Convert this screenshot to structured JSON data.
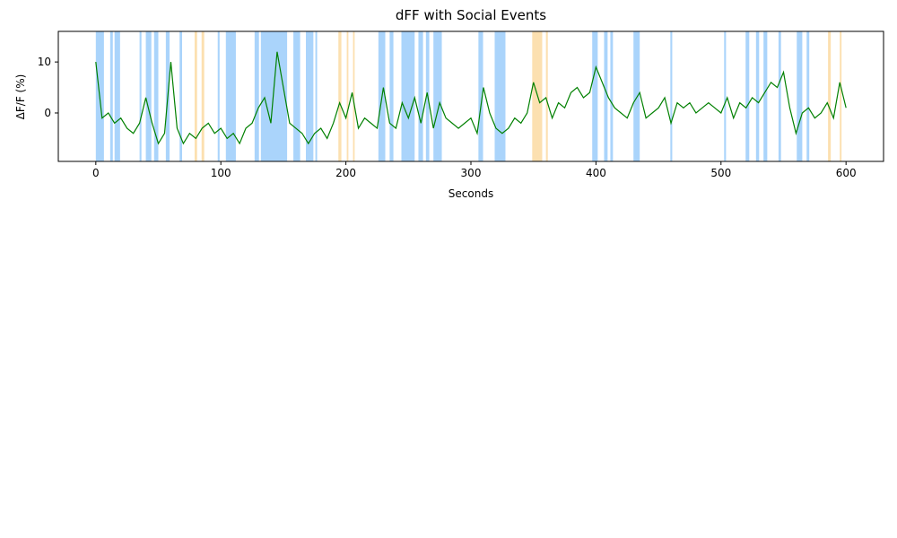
{
  "chart_data": {
    "type": "line",
    "title": "dFF with Social Events",
    "x_label": "Seconds",
    "y_label": "ΔF/F (%)",
    "x": [
      0,
      5,
      10,
      15,
      20,
      25,
      30,
      35,
      40,
      45,
      50,
      55,
      60,
      65,
      70,
      75,
      80,
      85,
      90,
      95,
      100,
      105,
      110,
      115,
      120,
      125,
      130,
      135,
      140,
      145,
      150,
      155,
      160,
      165,
      170,
      175,
      180,
      185,
      190,
      195,
      200,
      205,
      210,
      215,
      220,
      225,
      230,
      235,
      240,
      245,
      250,
      255,
      260,
      265,
      270,
      275,
      280,
      285,
      290,
      295,
      300,
      305,
      310,
      315,
      320,
      325,
      330,
      335,
      340,
      345,
      350,
      355,
      360,
      365,
      370,
      375,
      380,
      385,
      390,
      395,
      400,
      405,
      410,
      415,
      420,
      425,
      430,
      435,
      440,
      445,
      450,
      455,
      460,
      465,
      470,
      475,
      480,
      485,
      490,
      495,
      500,
      505,
      510,
      515,
      520,
      525,
      530,
      535,
      540,
      545,
      550,
      555,
      560,
      565,
      570,
      575,
      580,
      585,
      590,
      595,
      600
    ],
    "series": [
      {
        "color": "#008000",
        "values": [
          10,
          -1,
          0,
          -2,
          -1,
          -3,
          -4,
          -2,
          3,
          -2,
          -6,
          -4,
          10,
          -3,
          -6,
          -4,
          -5,
          -3,
          -2,
          -4,
          -3,
          -5,
          -4,
          -6,
          -3,
          -2,
          1,
          3,
          -2,
          12,
          5,
          -2,
          -3,
          -4,
          -6,
          -4,
          -3,
          -5,
          -2,
          2,
          -1,
          4,
          -3,
          -1,
          -2,
          -3,
          5,
          -2,
          -3,
          2,
          -1,
          3,
          -2,
          4,
          -3,
          2,
          -1,
          -2,
          -3,
          -2,
          -1,
          -4,
          5,
          0,
          -3,
          -4,
          -3,
          -1,
          -2,
          0,
          6,
          2,
          3,
          -1,
          2,
          1,
          4,
          5,
          3,
          4,
          9,
          6,
          3,
          1,
          0,
          -1,
          2,
          4,
          -1,
          0,
          1,
          3,
          -2,
          2,
          1,
          2,
          0,
          1,
          2,
          1,
          0,
          3,
          -1,
          2,
          1,
          3,
          2,
          4,
          6,
          5,
          8,
          1,
          -4,
          0,
          1,
          -1,
          0,
          2,
          -1,
          6,
          1
        ]
      }
    ],
    "event_groups": [
      {
        "color": "#aad4fb",
        "spans": [
          [
            0,
            6.5
          ],
          [
            11.5,
            13.6
          ],
          [
            15,
            19.4
          ],
          [
            35,
            36.5
          ],
          [
            40,
            44.4
          ],
          [
            46.6,
            50
          ],
          [
            56,
            59
          ],
          [
            67,
            69
          ],
          [
            97.5,
            99
          ],
          [
            104,
            112
          ],
          [
            127,
            130.5
          ],
          [
            132,
            153
          ],
          [
            158,
            163.4
          ],
          [
            168,
            174
          ],
          [
            175.6,
            177
          ],
          [
            226,
            231.5
          ],
          [
            235,
            238
          ],
          [
            244.4,
            255
          ],
          [
            258,
            261.7
          ],
          [
            264,
            266.7
          ],
          [
            270,
            276.7
          ],
          [
            306,
            309.7
          ],
          [
            319,
            327.6
          ],
          [
            397,
            401.4
          ],
          [
            406.5,
            409.3
          ],
          [
            411.5,
            413.6
          ],
          [
            430,
            435
          ],
          [
            459.5,
            461
          ],
          [
            502.5,
            504
          ],
          [
            519.7,
            522.6
          ],
          [
            528,
            530.5
          ],
          [
            534,
            537
          ],
          [
            546,
            548
          ],
          [
            560.6,
            565
          ],
          [
            568.5,
            570.6
          ]
        ]
      },
      {
        "color": "#fce0b0",
        "spans": [
          [
            79,
            81
          ],
          [
            84.6,
            86.7
          ],
          [
            194,
            196.4
          ],
          [
            200.7,
            202
          ],
          [
            205.7,
            207
          ],
          [
            349,
            357
          ],
          [
            360,
            361.5
          ],
          [
            585.6,
            587.8
          ],
          [
            595,
            596.4
          ]
        ]
      }
    ],
    "xlim": [
      -30,
      630
    ],
    "ylim": [
      -9.5,
      16
    ],
    "xticks": [
      0,
      100,
      200,
      300,
      400,
      500,
      600
    ],
    "yticks": [
      0,
      10
    ]
  }
}
